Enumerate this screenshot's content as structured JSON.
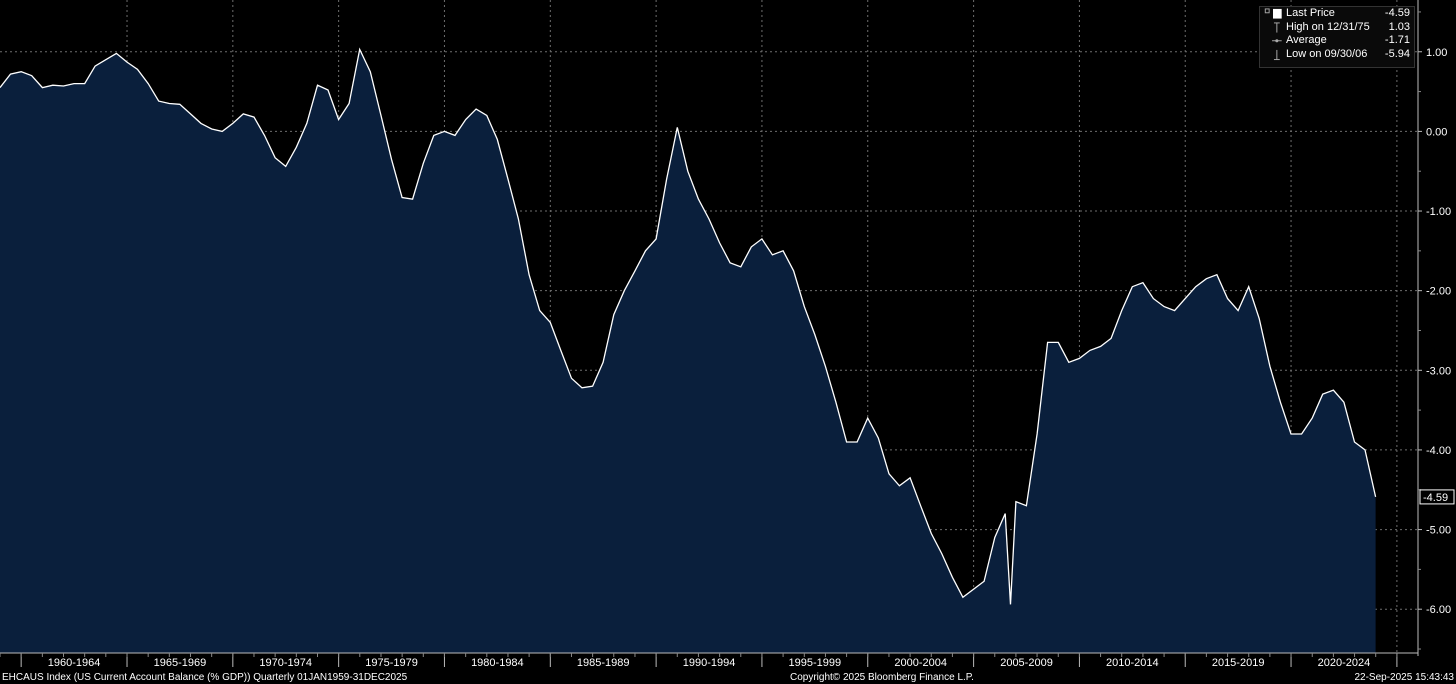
{
  "chart_data": {
    "type": "area",
    "title": "",
    "xlabel": "",
    "ylabel": "",
    "ylim": [
      -6.55,
      1.65
    ],
    "xlim": [
      "1959-01-01",
      "2025-12-31"
    ],
    "grid": true,
    "legend_position": "top-right",
    "y_ticks": [
      "1.00",
      "0.00",
      "-1.00",
      "-2.00",
      "-3.00",
      "-4.00",
      "-5.00",
      "-6.00"
    ],
    "x_tick_labels": [
      "1960-1964",
      "1965-1969",
      "1970-1974",
      "1975-1979",
      "1980-1984",
      "1985-1989",
      "1990-1994",
      "1995-1999",
      "2000-2004",
      "2005-2009",
      "2010-2014",
      "2015-2019",
      "2020-2024"
    ],
    "colors": {
      "background": "#000000",
      "area": "#0a1f3c",
      "line": "#ffffff",
      "grid": "#6e6e6e"
    },
    "series": [
      {
        "name": "Last Price",
        "points": [
          [
            "1959-01-01",
            0.55
          ],
          [
            "1959-07-01",
            0.72
          ],
          [
            "1960-01-01",
            0.75
          ],
          [
            "1960-07-01",
            0.7
          ],
          [
            "1961-01-01",
            0.55
          ],
          [
            "1961-07-01",
            0.58
          ],
          [
            "1962-01-01",
            0.57
          ],
          [
            "1962-07-01",
            0.6
          ],
          [
            "1963-01-01",
            0.6
          ],
          [
            "1963-07-01",
            0.82
          ],
          [
            "1964-01-01",
            0.9
          ],
          [
            "1964-07-01",
            0.98
          ],
          [
            "1965-01-01",
            0.87
          ],
          [
            "1965-07-01",
            0.78
          ],
          [
            "1966-01-01",
            0.6
          ],
          [
            "1966-07-01",
            0.38
          ],
          [
            "1967-01-01",
            0.35
          ],
          [
            "1967-07-01",
            0.34
          ],
          [
            "1968-01-01",
            0.22
          ],
          [
            "1968-07-01",
            0.1
          ],
          [
            "1969-01-01",
            0.03
          ],
          [
            "1969-07-01",
            0.0
          ],
          [
            "1970-01-01",
            0.1
          ],
          [
            "1970-07-01",
            0.22
          ],
          [
            "1971-01-01",
            0.18
          ],
          [
            "1971-07-01",
            -0.05
          ],
          [
            "1972-01-01",
            -0.33
          ],
          [
            "1972-07-01",
            -0.44
          ],
          [
            "1973-01-01",
            -0.2
          ],
          [
            "1973-07-01",
            0.1
          ],
          [
            "1974-01-01",
            0.58
          ],
          [
            "1974-07-01",
            0.52
          ],
          [
            "1975-01-01",
            0.15
          ],
          [
            "1975-07-01",
            0.35
          ],
          [
            "1975-12-31",
            1.03
          ],
          [
            "1976-06-30",
            0.75
          ],
          [
            "1977-01-01",
            0.2
          ],
          [
            "1977-07-01",
            -0.35
          ],
          [
            "1978-01-01",
            -0.83
          ],
          [
            "1978-07-01",
            -0.85
          ],
          [
            "1979-01-01",
            -0.4
          ],
          [
            "1979-07-01",
            -0.05
          ],
          [
            "1980-01-01",
            0.0
          ],
          [
            "1980-07-01",
            -0.05
          ],
          [
            "1981-01-01",
            0.15
          ],
          [
            "1981-07-01",
            0.28
          ],
          [
            "1982-01-01",
            0.2
          ],
          [
            "1982-07-01",
            -0.1
          ],
          [
            "1983-01-01",
            -0.6
          ],
          [
            "1983-07-01",
            -1.1
          ],
          [
            "1984-01-01",
            -1.8
          ],
          [
            "1984-07-01",
            -2.25
          ],
          [
            "1985-01-01",
            -2.4
          ],
          [
            "1985-07-01",
            -2.75
          ],
          [
            "1986-01-01",
            -3.1
          ],
          [
            "1986-07-01",
            -3.22
          ],
          [
            "1987-01-01",
            -3.2
          ],
          [
            "1987-07-01",
            -2.9
          ],
          [
            "1988-01-01",
            -2.3
          ],
          [
            "1988-07-01",
            -2.0
          ],
          [
            "1989-01-01",
            -1.75
          ],
          [
            "1989-07-01",
            -1.5
          ],
          [
            "1990-01-01",
            -1.35
          ],
          [
            "1990-07-01",
            -0.6
          ],
          [
            "1991-01-01",
            0.05
          ],
          [
            "1991-07-01",
            -0.5
          ],
          [
            "1992-01-01",
            -0.85
          ],
          [
            "1992-07-01",
            -1.1
          ],
          [
            "1993-01-01",
            -1.4
          ],
          [
            "1993-07-01",
            -1.65
          ],
          [
            "1994-01-01",
            -1.7
          ],
          [
            "1994-07-01",
            -1.45
          ],
          [
            "1995-01-01",
            -1.35
          ],
          [
            "1995-07-01",
            -1.55
          ],
          [
            "1996-01-01",
            -1.5
          ],
          [
            "1996-07-01",
            -1.75
          ],
          [
            "1997-01-01",
            -2.2
          ],
          [
            "1997-07-01",
            -2.55
          ],
          [
            "1998-01-01",
            -2.95
          ],
          [
            "1998-07-01",
            -3.4
          ],
          [
            "1999-01-01",
            -3.9
          ],
          [
            "1999-07-01",
            -3.9
          ],
          [
            "2000-01-01",
            -3.6
          ],
          [
            "2000-07-01",
            -3.85
          ],
          [
            "2001-01-01",
            -4.3
          ],
          [
            "2001-07-01",
            -4.45
          ],
          [
            "2002-01-01",
            -4.35
          ],
          [
            "2002-07-01",
            -4.7
          ],
          [
            "2003-01-01",
            -5.05
          ],
          [
            "2003-07-01",
            -5.3
          ],
          [
            "2004-01-01",
            -5.6
          ],
          [
            "2004-07-01",
            -5.85
          ],
          [
            "2006-09-30",
            -5.94
          ],
          [
            "2005-07-01",
            -5.65
          ],
          [
            "2006-01-01",
            -5.1
          ],
          [
            "2006-07-01",
            -4.8
          ],
          [
            "2007-01-01",
            -4.65
          ],
          [
            "2007-07-01",
            -4.7
          ],
          [
            "2008-01-01",
            -3.8
          ],
          [
            "2008-07-01",
            -2.65
          ],
          [
            "2009-01-01",
            -2.65
          ],
          [
            "2009-07-01",
            -2.9
          ],
          [
            "2010-01-01",
            -2.85
          ],
          [
            "2010-07-01",
            -2.75
          ],
          [
            "2011-01-01",
            -2.7
          ],
          [
            "2011-07-01",
            -2.6
          ],
          [
            "2012-01-01",
            -2.25
          ],
          [
            "2012-07-01",
            -1.95
          ],
          [
            "2013-01-01",
            -1.9
          ],
          [
            "2013-07-01",
            -2.1
          ],
          [
            "2014-01-01",
            -2.2
          ],
          [
            "2014-07-01",
            -2.25
          ],
          [
            "2015-01-01",
            -2.1
          ],
          [
            "2015-07-01",
            -1.95
          ],
          [
            "2016-01-01",
            -1.85
          ],
          [
            "2016-07-01",
            -1.8
          ],
          [
            "2017-01-01",
            -2.1
          ],
          [
            "2017-07-01",
            -2.25
          ],
          [
            "2018-01-01",
            -1.95
          ],
          [
            "2018-07-01",
            -2.35
          ],
          [
            "2019-01-01",
            -2.95
          ],
          [
            "2019-07-01",
            -3.4
          ],
          [
            "2020-01-01",
            -3.8
          ],
          [
            "2020-07-01",
            -3.8
          ],
          [
            "2021-01-01",
            -3.6
          ],
          [
            "2021-07-01",
            -3.3
          ],
          [
            "2022-01-01",
            -3.25
          ],
          [
            "2022-07-01",
            -3.4
          ],
          [
            "2023-01-01",
            -3.9
          ],
          [
            "2023-07-01",
            -4.0
          ],
          [
            "2023-12-31",
            -4.59
          ]
        ]
      }
    ],
    "last_value_label": "-4.59"
  },
  "legend": {
    "last_price_label": "Last Price",
    "last_price_value": "-4.59",
    "high_label": "High on 12/31/75",
    "high_value": "1.03",
    "average_label": "Average",
    "average_value": "-1.71",
    "low_label": "Low on 09/30/06",
    "low_value": "-5.94"
  },
  "footer": {
    "left": "EHCAUS Index (US Current Account Balance (% GDP))  Quarterly 01JAN1959-31DEC2025",
    "center": "Copyright© 2025 Bloomberg Finance L.P.",
    "right": "22-Sep-2025 15:43:43"
  }
}
